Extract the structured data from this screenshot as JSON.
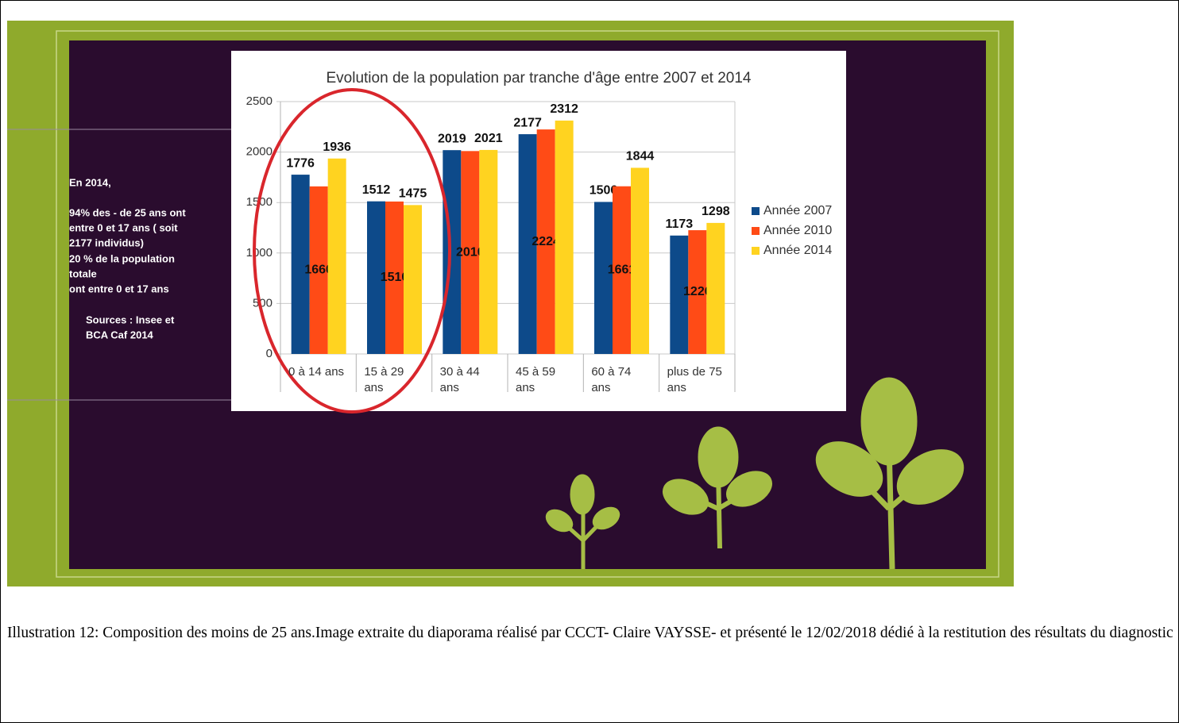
{
  "chart_data": {
    "type": "bar",
    "title": "Evolution de la population par tranche d'âge entre 2007 et 2014",
    "categories": [
      "0 à 14 ans",
      "15 à 29 ans",
      "30 à 44 ans",
      "45 à 59 ans",
      "60 à 74 ans",
      "plus de 75 ans"
    ],
    "series": [
      {
        "name": "Année 2007",
        "color": "#0d4a8a",
        "values": [
          1776,
          1512,
          2019,
          2177,
          1506,
          1173
        ]
      },
      {
        "name": "Année 2010",
        "color": "#ff4b16",
        "values": [
          1660,
          1510,
          2010,
          2224,
          1661,
          1226
        ]
      },
      {
        "name": "Année 2014",
        "color": "#ffd320",
        "values": [
          1936,
          1475,
          2021,
          2312,
          1844,
          1298
        ]
      }
    ],
    "ylim": [
      0,
      2500
    ],
    "yticks": [
      0,
      500,
      1000,
      1500,
      2000,
      2500
    ],
    "grid": true,
    "legend": "right"
  },
  "slide_text": [
    "En 2014,",
    "94% des - de 25 ans ont",
    "entre 0 et 17 ans ( soit",
    "2177 individus)",
    "20 % de la population",
    "totale",
    "ont entre 0 et 17 ans",
    "Sources : Insee et",
    "BCA Caf 2014"
  ],
  "caption": "Illustration 12: Composition des moins de 25 ans.Image extraite du diaporama réalisé par CCCT- Claire VAYSSE- et présenté le 12/02/2018 dédié à la restitution des résultats du diagnostic"
}
